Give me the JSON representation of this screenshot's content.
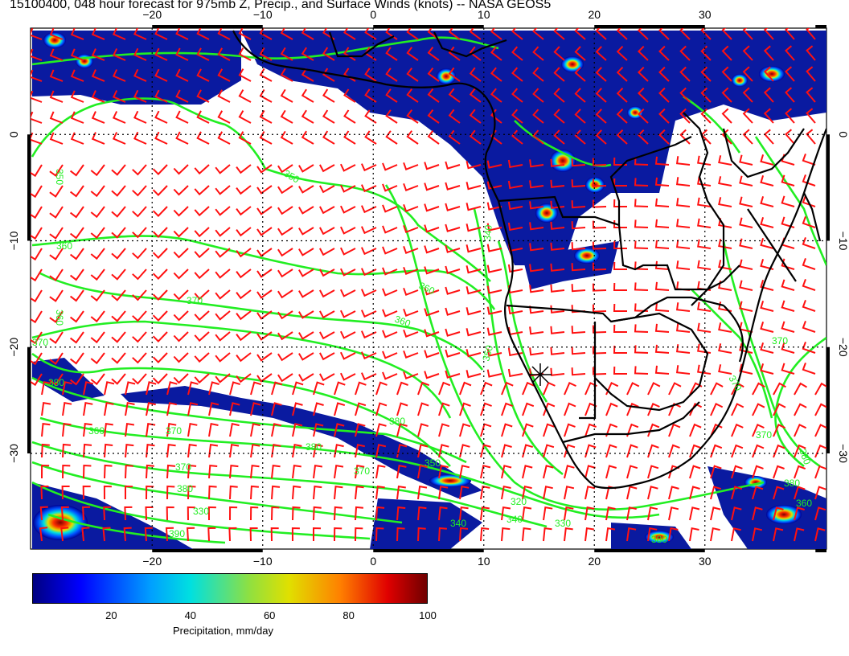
{
  "title": "15100400, 048 hour forecast for 975mb Z, Precip., and Surface Winds (knots) -- NASA GEOS5",
  "map": {
    "lon_range": [
      -31,
      41
    ],
    "lat_range": [
      -39,
      10
    ],
    "lon_ticks": [
      -20,
      -10,
      0,
      10,
      20,
      30
    ],
    "lat_ticks": [
      0,
      -10,
      -20,
      -30
    ],
    "lon_tick_labels": [
      "−20",
      "−10",
      "0",
      "10",
      "20",
      "30"
    ],
    "lat_tick_labels": [
      "0",
      "−10",
      "−20",
      "−30"
    ],
    "contour_labels": [
      "350",
      "350",
      "360",
      "360",
      "370",
      "380",
      "370",
      "380",
      "370",
      "360",
      "370",
      "380",
      "340",
      "350",
      "360",
      "360",
      "370",
      "380",
      "390",
      "380",
      "370",
      "350",
      "340",
      "330",
      "340",
      "320",
      "330",
      "380",
      "360",
      "370",
      "380",
      "370"
    ],
    "colors": {
      "contour": "#22ee22",
      "wind_barb": "#ff1010",
      "coast": "#000000",
      "precip_low": "#000080",
      "precip_high": "#800000"
    },
    "marker_icon": "star-marker-icon"
  },
  "colorbar": {
    "title": "Precipitation, mm/day",
    "tick_labels": [
      "20",
      "40",
      "60",
      "80",
      "100"
    ],
    "range": [
      0,
      100
    ]
  }
}
